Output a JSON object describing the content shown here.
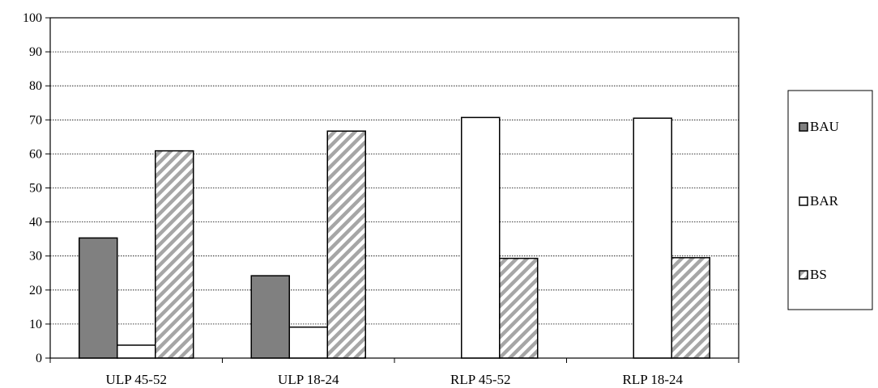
{
  "chart_data": {
    "type": "bar",
    "title": "",
    "xlabel": "",
    "ylabel": "",
    "ylim": [
      0,
      100
    ],
    "yticks": [
      0,
      10,
      20,
      30,
      40,
      50,
      60,
      70,
      80,
      90,
      100
    ],
    "grid": "horizontal dotted",
    "legend_position": "right",
    "categories": [
      "ULP 45-52",
      "ULP 18-24",
      "RLP 45-52",
      "RLP 18-24"
    ],
    "series": [
      {
        "name": "BAU",
        "values": [
          35.3,
          24.2,
          0,
          0
        ],
        "fill": "#808080",
        "pattern": "solid"
      },
      {
        "name": "BAR",
        "values": [
          3.8,
          9.1,
          70.7,
          70.5
        ],
        "fill": "#ffffff",
        "pattern": "solid"
      },
      {
        "name": "BS",
        "values": [
          60.9,
          66.7,
          29.3,
          29.5
        ],
        "fill": "#ffffff",
        "pattern": "diagonal-hatch",
        "hatch_color": "#a6a6a6"
      }
    ]
  }
}
